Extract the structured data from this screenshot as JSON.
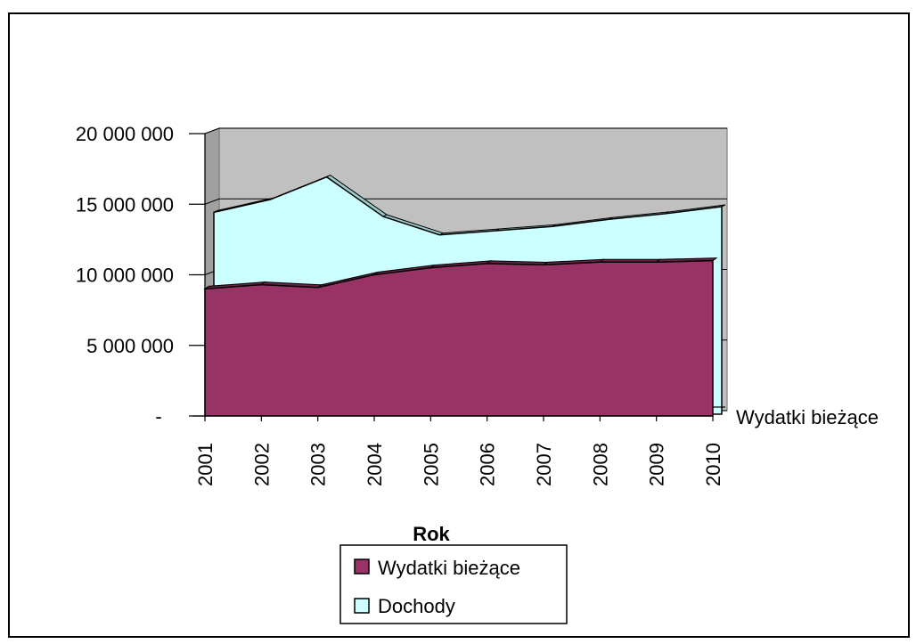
{
  "chart_data": {
    "type": "area",
    "title": "",
    "xlabel": "Rok",
    "ylabel": "",
    "categories": [
      "2001",
      "2002",
      "2003",
      "2004",
      "2005",
      "2006",
      "2007",
      "2008",
      "2009",
      "2010"
    ],
    "series": [
      {
        "name": "Wydatki bieżące",
        "color": "#993366",
        "values": [
          9000000,
          9300000,
          9100000,
          10000000,
          10500000,
          10800000,
          10700000,
          10900000,
          10900000,
          11000000
        ]
      },
      {
        "name": "Dochody",
        "color": "#ccffff",
        "values": [
          14300000,
          15200000,
          16800000,
          14000000,
          12700000,
          13000000,
          13300000,
          13800000,
          14200000,
          14700000
        ]
      }
    ],
    "y_tick_labels": [
      "-",
      "5 000 000",
      "10 000 000",
      "15 000 000",
      "20 000 000"
    ],
    "y_tick_values": [
      0,
      5000000,
      10000000,
      15000000,
      20000000
    ],
    "ylim": [
      0,
      20000000
    ],
    "depth_axis_label": "Wydatki bieżące",
    "grid": true,
    "legend_position": "bottom",
    "legend": [
      {
        "label": "Wydatki bieżące",
        "color": "#993366"
      },
      {
        "label": "Dochody",
        "color": "#ccffff"
      }
    ],
    "wall_color": "#c0c0c0"
  }
}
